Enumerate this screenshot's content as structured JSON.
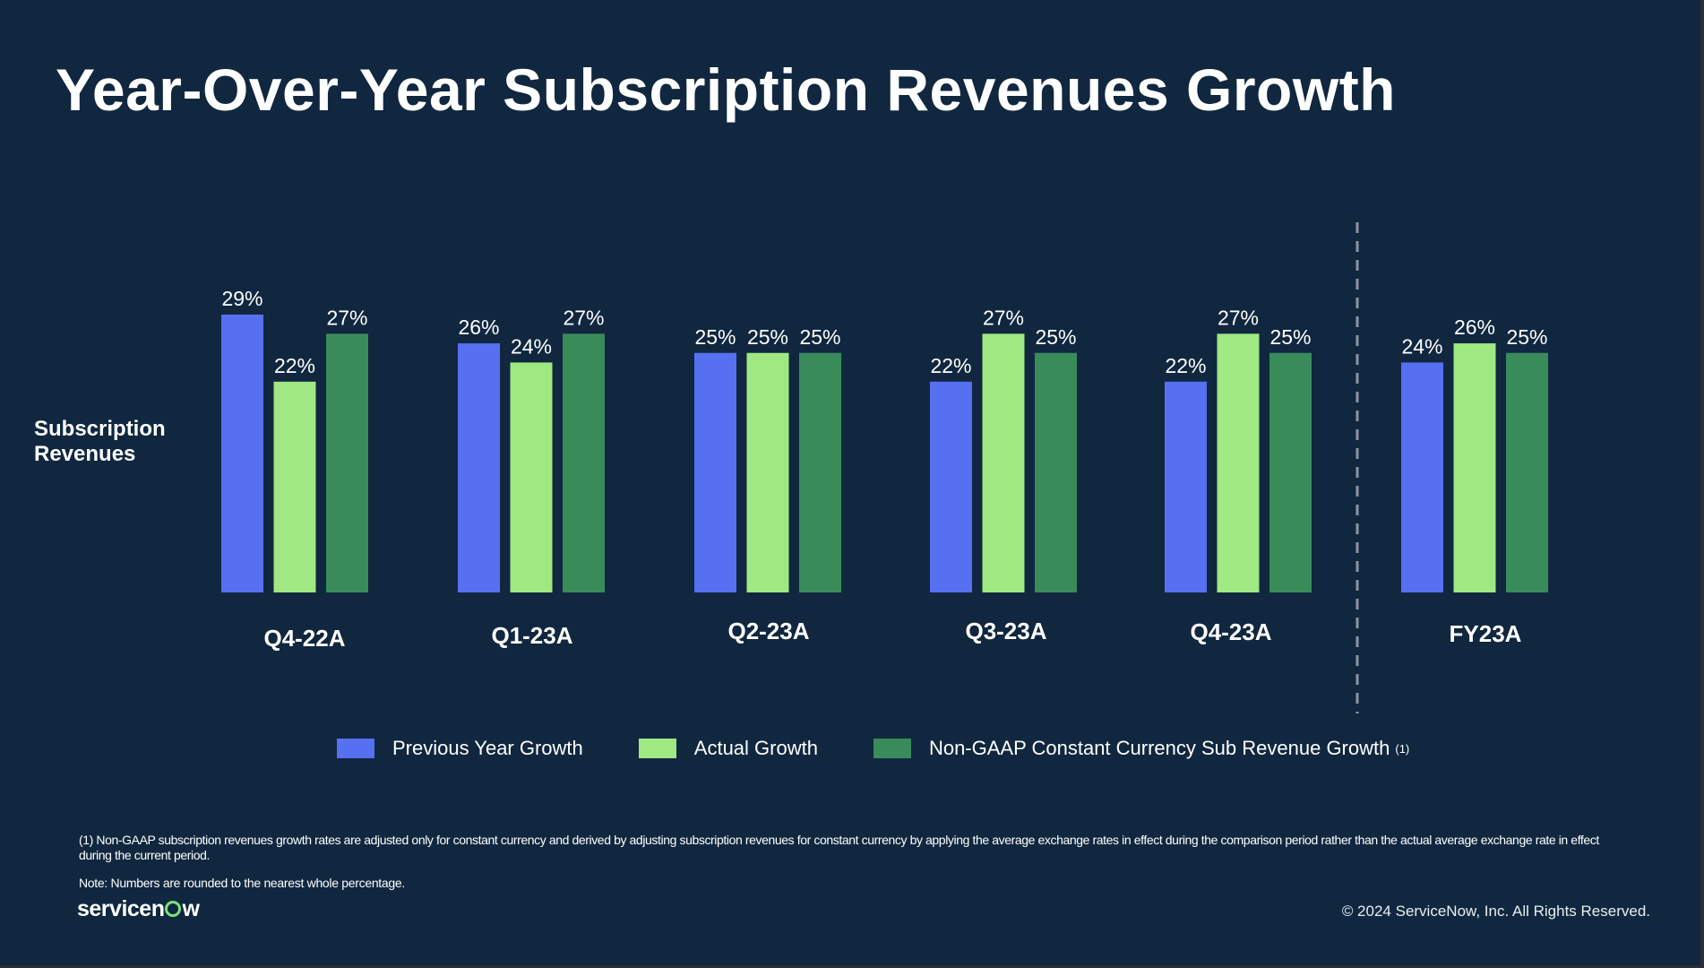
{
  "title": "Year-Over-Year Subscription Revenues Growth",
  "row_label": [
    "Subscription",
    "Revenues"
  ],
  "colors": {
    "background": "#10273f",
    "previous_year": "#5670f1",
    "actual": "#9fe882",
    "non_gaap": "#3a8b5a",
    "divider": "#8a96a3"
  },
  "chart_data": {
    "type": "bar",
    "categories": [
      "Q4-22A",
      "Q1-23A",
      "Q2-23A",
      "Q3-23A",
      "Q4-23A",
      "FY23A"
    ],
    "series": [
      {
        "name": "Previous Year Growth",
        "values": [
          29,
          26,
          25,
          22,
          22,
          24
        ],
        "labels": [
          "29%",
          "26%",
          "25%",
          "22%",
          "22%",
          "24%"
        ]
      },
      {
        "name": "Actual Growth",
        "values": [
          22,
          24,
          25,
          27,
          27,
          26
        ],
        "labels": [
          "22%",
          "24%",
          "25%",
          "27%",
          "27%",
          "26%"
        ]
      },
      {
        "name": "Non-GAAP Constant Currency Sub Revenue Growth",
        "values": [
          27,
          27,
          25,
          25,
          25,
          25
        ],
        "labels": [
          "27%",
          "27%",
          "25%",
          "25%",
          "25%",
          "25%"
        ]
      }
    ],
    "ylim": [
      0,
      29
    ],
    "divider_before_category": "FY23A",
    "grid": false,
    "legend_position": "bottom"
  },
  "legend": [
    {
      "label": "Previous Year Growth",
      "sup": ""
    },
    {
      "label": "Actual Growth",
      "sup": ""
    },
    {
      "label": "Non-GAAP Constant Currency Sub Revenue Growth",
      "sup": "(1)"
    }
  ],
  "footnote": "(1) Non-GAAP subscription revenues growth rates are adjusted only for constant currency and derived by adjusting subscription revenues for constant currency by applying the average exchange rates in effect during the comparison period rather than the actual average exchange rate in effect during the current period.",
  "note": "Note: Numbers are rounded to the nearest whole percentage.",
  "logo": {
    "prefix": "servicen",
    "suffix": "w"
  },
  "copyright": "© 2024 ServiceNow, Inc. All Rights Reserved."
}
